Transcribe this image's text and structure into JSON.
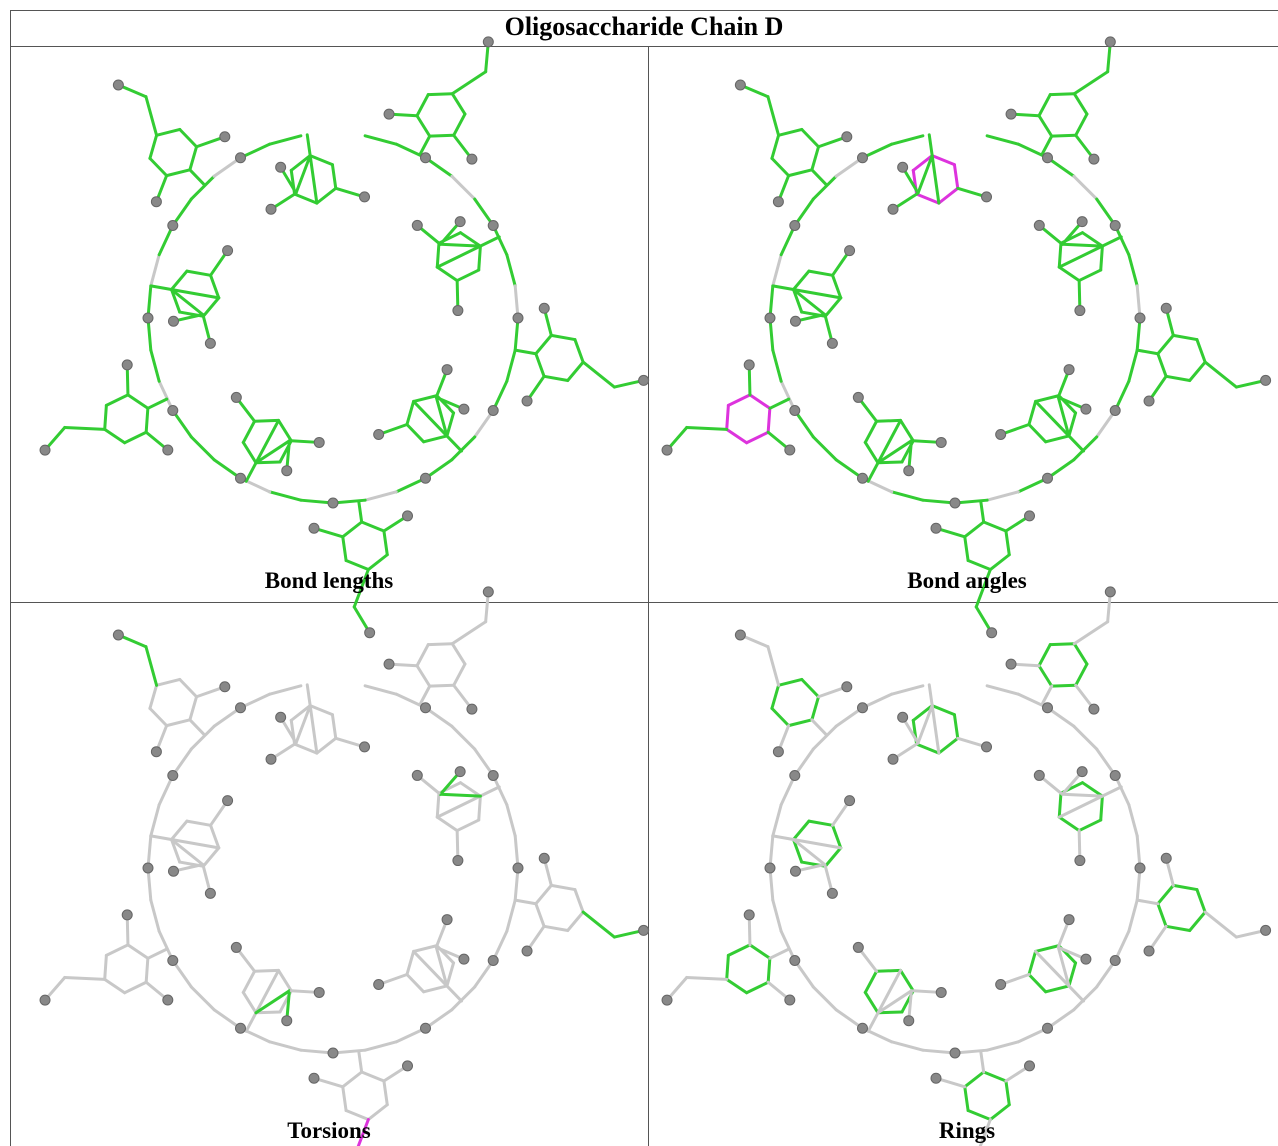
{
  "header": {
    "title": "Oligosaccharide Chain D"
  },
  "panels": [
    {
      "caption": "Bond lengths"
    },
    {
      "caption": "Bond angles"
    },
    {
      "caption": "Torsions"
    },
    {
      "caption": "Rings"
    }
  ]
}
